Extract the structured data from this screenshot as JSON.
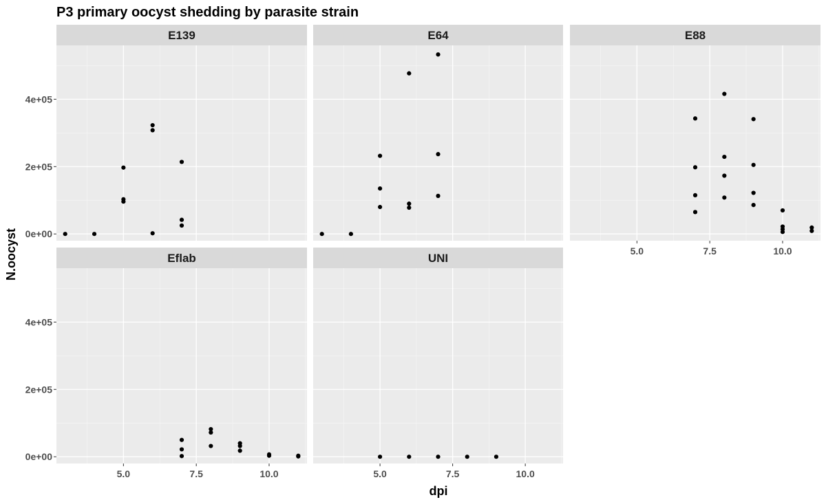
{
  "chart_data": {
    "type": "scatter",
    "title": "P3 primary oocyst shedding by parasite strain",
    "xlabel": "dpi",
    "ylabel": "N.oocyst",
    "xlim": [
      2.7,
      11.3
    ],
    "ylim": [
      -20000,
      560000
    ],
    "x_ticks": [
      5,
      7.5,
      10
    ],
    "x_tick_labels": [
      "5.0",
      "7.5",
      "10.0"
    ],
    "y_ticks": [
      0,
      200000,
      400000
    ],
    "y_tick_labels": [
      "0e+00",
      "2e+05",
      "4e+05"
    ],
    "grid": true,
    "point_color": "#000000",
    "panel_background": "#ebebeb",
    "strip_background": "#d9d9d9",
    "facets": [
      {
        "name": "E139",
        "points": [
          {
            "x": 3,
            "y": 0
          },
          {
            "x": 4,
            "y": 0
          },
          {
            "x": 5,
            "y": 197000
          },
          {
            "x": 5,
            "y": 103000
          },
          {
            "x": 5,
            "y": 96000
          },
          {
            "x": 6,
            "y": 323000
          },
          {
            "x": 6,
            "y": 308000
          },
          {
            "x": 6,
            "y": 2000
          },
          {
            "x": 7,
            "y": 214000
          },
          {
            "x": 7,
            "y": 42000
          },
          {
            "x": 7,
            "y": 25000
          }
        ]
      },
      {
        "name": "E64",
        "points": [
          {
            "x": 3,
            "y": 0
          },
          {
            "x": 4,
            "y": 0
          },
          {
            "x": 5,
            "y": 232000
          },
          {
            "x": 5,
            "y": 135000
          },
          {
            "x": 5,
            "y": 80000
          },
          {
            "x": 6,
            "y": 477000
          },
          {
            "x": 6,
            "y": 90000
          },
          {
            "x": 6,
            "y": 78000
          },
          {
            "x": 7,
            "y": 533000
          },
          {
            "x": 7,
            "y": 237000
          },
          {
            "x": 7,
            "y": 113000
          }
        ]
      },
      {
        "name": "E88",
        "points": [
          {
            "x": 7,
            "y": 343000
          },
          {
            "x": 7,
            "y": 198000
          },
          {
            "x": 7,
            "y": 115000
          },
          {
            "x": 7,
            "y": 65000
          },
          {
            "x": 8,
            "y": 416000
          },
          {
            "x": 8,
            "y": 229000
          },
          {
            "x": 8,
            "y": 173000
          },
          {
            "x": 8,
            "y": 108000
          },
          {
            "x": 9,
            "y": 341000
          },
          {
            "x": 9,
            "y": 205000
          },
          {
            "x": 9,
            "y": 122000
          },
          {
            "x": 9,
            "y": 86000
          },
          {
            "x": 10,
            "y": 70000
          },
          {
            "x": 10,
            "y": 22000
          },
          {
            "x": 10,
            "y": 14000
          },
          {
            "x": 10,
            "y": 6000
          },
          {
            "x": 11,
            "y": 19000
          },
          {
            "x": 11,
            "y": 9000
          }
        ]
      },
      {
        "name": "Eflab",
        "points": [
          {
            "x": 7,
            "y": 50000
          },
          {
            "x": 7,
            "y": 22000
          },
          {
            "x": 7,
            "y": 2000
          },
          {
            "x": 8,
            "y": 82000
          },
          {
            "x": 8,
            "y": 72000
          },
          {
            "x": 8,
            "y": 32000
          },
          {
            "x": 9,
            "y": 40000
          },
          {
            "x": 9,
            "y": 32000
          },
          {
            "x": 9,
            "y": 18000
          },
          {
            "x": 10,
            "y": 7000
          },
          {
            "x": 10,
            "y": 3000
          },
          {
            "x": 11,
            "y": 3000
          },
          {
            "x": 11,
            "y": 1000
          }
        ]
      },
      {
        "name": "UNI",
        "points": [
          {
            "x": 5,
            "y": 0
          },
          {
            "x": 6,
            "y": 0
          },
          {
            "x": 7,
            "y": 0
          },
          {
            "x": 8,
            "y": 0
          },
          {
            "x": 9,
            "y": 0
          }
        ]
      }
    ]
  }
}
